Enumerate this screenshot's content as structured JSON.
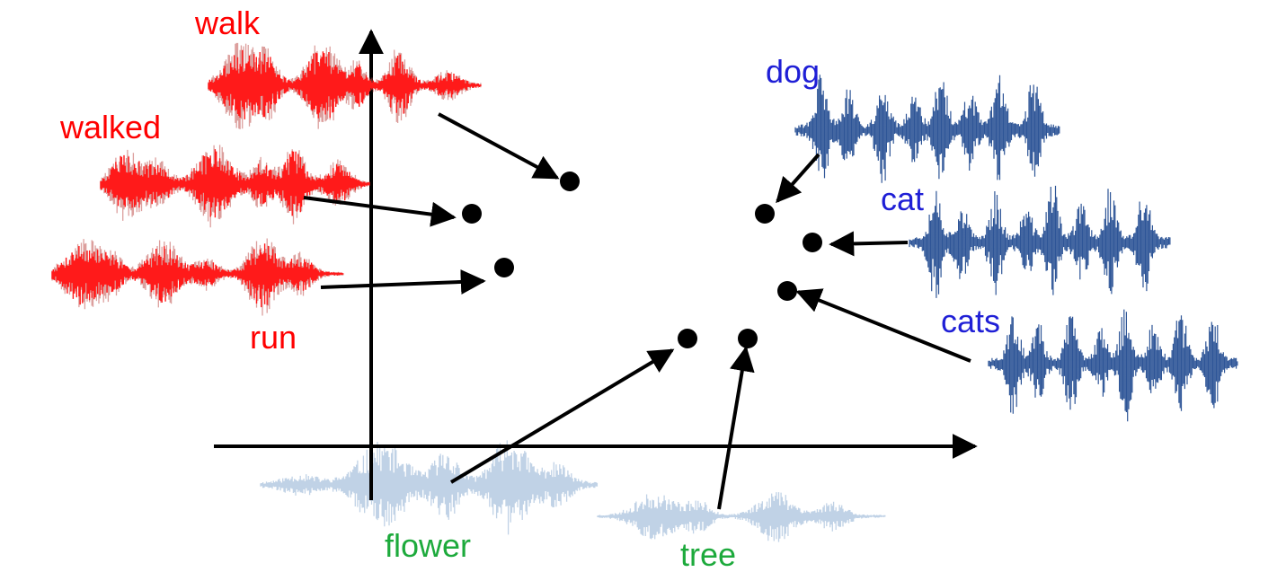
{
  "colors": {
    "red_words": "#ff0000",
    "red_wave": "#ff1a1a",
    "red_wave_shadow": "#c0504d",
    "blue_words": "#1f1fd6",
    "blue_wave": "#2e5597",
    "green_words": "#1daa3c",
    "faded_wave": "#b9cde3",
    "axes": "#000000",
    "points": "#000000",
    "arrows": "#000000"
  },
  "labels": {
    "walk": "walk",
    "walked": "walked",
    "run": "run",
    "dog": "dog",
    "cat": "cat",
    "cats": "cats",
    "flower": "flower",
    "tree": "tree"
  }
}
